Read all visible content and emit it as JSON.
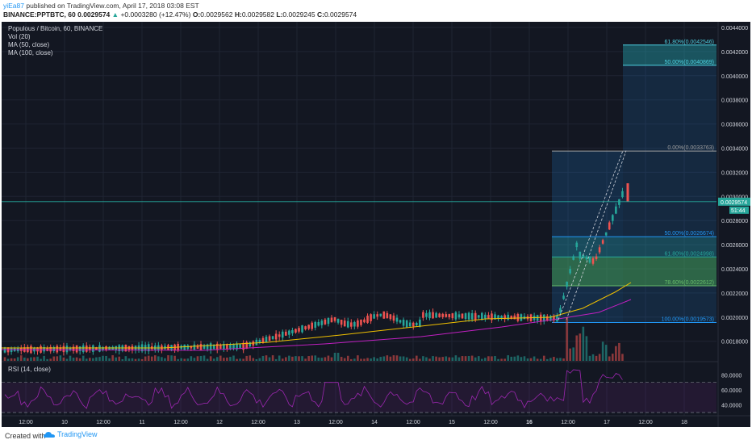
{
  "header": {
    "user": "yiEa87",
    "published": " published on TradingView.com, April 17, 2018 03:08 EST",
    "symbol": "BINANCE:PPTBTC, 60",
    "open_price": "0.0029574",
    "change": "+0.0003280 (+12.47%)",
    "o_label": "O:",
    "o_value": "0.0029562",
    "h_label": "H:",
    "h_value": "0.0029582",
    "l_label": "L:",
    "l_value": "0.0029245",
    "c_label": "C:",
    "c_value": "0.0029574"
  },
  "legend": {
    "title": "Populous / Bitcoin, 60, BINANCE",
    "vol": "Vol (20)",
    "ma50": "MA (50, close)",
    "ma100": "MA (100, close)",
    "rsi": "RSI (14, close)"
  },
  "price_axis": [
    "0.0044000",
    "0.0042000",
    "0.0040000",
    "0.0038000",
    "0.0036000",
    "0.0034000",
    "0.0032000",
    "0.0030000",
    "0.0028000",
    "0.0026000",
    "0.0024000",
    "0.0022000",
    "0.0020000",
    "0.0018000"
  ],
  "current_price_tag": "0.0029574",
  "countdown": "51:44",
  "rsi_axis": [
    "80.0000",
    "60.0000",
    "40.0000"
  ],
  "time_axis": [
    "12:00",
    "10",
    "12:00",
    "11",
    "12:00",
    "12",
    "12:00",
    "13",
    "12:00",
    "14",
    "12:00",
    "15",
    "12:00",
    "16",
    "12:00",
    "17",
    "12:00",
    "18"
  ],
  "fib_levels": [
    {
      "label": "61.80%(0.0042546)",
      "color": "#4dd0e1"
    },
    {
      "label": "50.00%(0.0040869)",
      "color": "#4dd0e1"
    },
    {
      "label": "0.00%(0.0033763)",
      "color": "#9e9e9e"
    },
    {
      "label": "50.00%(0.0026674)",
      "color": "#2196f3"
    },
    {
      "label": "61.80%(0.0024998)",
      "color": "#26a69a"
    },
    {
      "label": "78.60%(0.0022612)",
      "color": "#66bb6a"
    },
    {
      "label": "100.00%(0.0019573)",
      "color": "#2196f3"
    }
  ],
  "footer": {
    "created_with": "Created with",
    "brand": "TradingView"
  },
  "colors": {
    "background": "#131722",
    "up": "#26a69a",
    "down": "#ef5350",
    "ma50": "#f0c000",
    "ma100": "#c020c0",
    "rsi": "#9c27b0"
  }
}
